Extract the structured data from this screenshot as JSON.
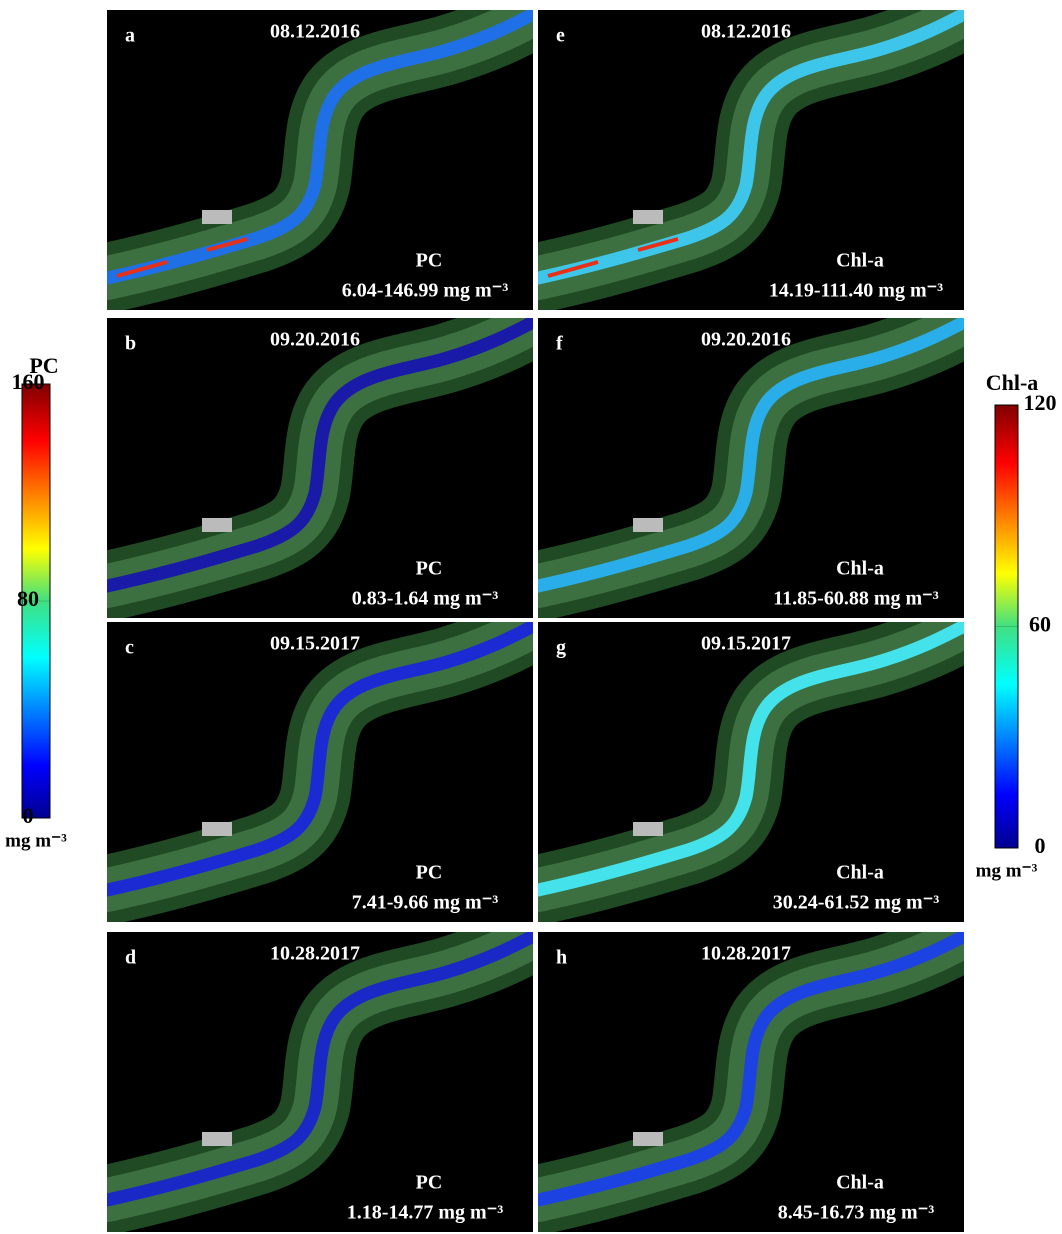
{
  "panels": [
    {
      "letter": "a",
      "date": "08.12.2016",
      "variable": "PC",
      "range": "6.04-146.99 mg m⁻³",
      "color": "#1f6fe6"
    },
    {
      "letter": "b",
      "date": "09.20.2016",
      "variable": "PC",
      "range": "0.83-1.64 mg m⁻³",
      "color": "#1a1aa8"
    },
    {
      "letter": "c",
      "date": "09.15.2017",
      "variable": "PC",
      "range": "7.41-9.66 mg m⁻³",
      "color": "#1c2ad4"
    },
    {
      "letter": "d",
      "date": "10.28.2017",
      "variable": "PC",
      "range": "1.18-14.77 mg m⁻³",
      "color": "#1a28c6"
    },
    {
      "letter": "e",
      "date": "08.12.2016",
      "variable": "Chl-a",
      "range": "14.19-111.40 mg m⁻³",
      "color": "#3ec6ea"
    },
    {
      "letter": "f",
      "date": "09.20.2016",
      "variable": "Chl-a",
      "range": "11.85-60.88 mg m⁻³",
      "color": "#2aaeea"
    },
    {
      "letter": "g",
      "date": "09.15.2017",
      "variable": "Chl-a",
      "range": "30.24-61.52 mg m⁻³",
      "color": "#44e2ea"
    },
    {
      "letter": "h",
      "date": "10.28.2017",
      "variable": "Chl-a",
      "range": "8.45-16.73 mg m⁻³",
      "color": "#1c42e2"
    }
  ],
  "colorbars": [
    {
      "label": "PC",
      "unit": "mg m⁻³",
      "lim": [
        0,
        160
      ],
      "ticks": [
        0,
        80,
        160
      ]
    },
    {
      "label": "Chl-a",
      "unit": "mg m⁻³",
      "lim": [
        0,
        120
      ],
      "ticks": [
        0,
        60,
        120
      ]
    }
  ]
}
